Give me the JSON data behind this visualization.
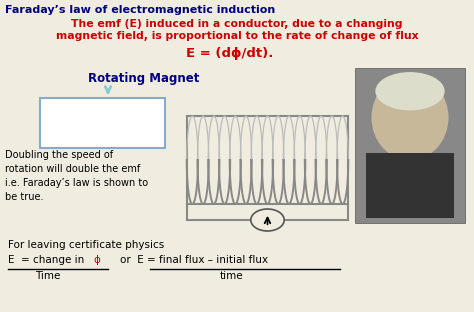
{
  "title": "Faraday’s law of electromagnetic induction",
  "subtitle_line1": "The emf (E) induced in a conductor, due to a changing",
  "subtitle_line2": "magnetic field, is proportional to the rate of change of flux",
  "formula": "E = (dϕ/dt).",
  "rotating_magnet_label": "Rotating Magnet",
  "doubling_text": "Doubling the speed of\nrotation will double the emf\ni.e. Faraday’s law is shown to\nbe true.",
  "bottom_text1": "For leaving certificate physics",
  "bottom_denom_left": "Time",
  "bottom_denom_right": "time",
  "bg_color": "#f0ede0",
  "title_color": "#000080",
  "subtitle_color": "#cc0000",
  "formula_color": "#cc0000",
  "body_color": "#000000",
  "magnet_label_color": "#000080",
  "phi_color": "#cc0000",
  "coil_color": "#999999",
  "box_color": "#88aacc",
  "arrow_color": "#88cccc"
}
